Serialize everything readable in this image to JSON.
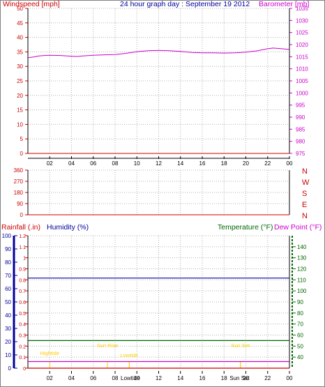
{
  "colors": {
    "wind": "#cc0000",
    "pressure": "#cc00cc",
    "title": "#00009c",
    "direction": "#cc0000",
    "rain": "#cc0000",
    "humidity": "#00009c",
    "temperature": "#006600",
    "dewpoint": "#cc00cc",
    "tide": "#ffcc00",
    "grid": "#b0b0b0"
  },
  "header": {
    "wind_label": "Windspeed [mph]",
    "title": "24 hour graph day : September 19 2012",
    "pressure_label": "Barometer [mb]"
  },
  "lower_header": {
    "rain_label": "Rainfall (.in)",
    "humidity_label": "Humidity (%)",
    "temp_label": "Temperature (°F)",
    "dew_label": "Dew Point (°F)"
  },
  "chart_data": [
    {
      "type": "line",
      "name": "wind-and-pressure",
      "x_ticks": [
        "02",
        "04",
        "06",
        "08",
        "10",
        "12",
        "14",
        "16",
        "18",
        "20",
        "22",
        "00"
      ],
      "xlim": [
        0,
        24
      ],
      "y_left": {
        "label": "Windspeed [mph]",
        "lim": [
          0,
          50
        ],
        "ticks": [
          "0",
          "5",
          "10",
          "15",
          "20",
          "25",
          "30",
          "35",
          "40",
          "45",
          "50"
        ]
      },
      "y_right": {
        "label": "Barometer [mb]",
        "lim": [
          975,
          1035
        ],
        "ticks": [
          "975",
          "980",
          "985",
          "990",
          "995",
          "1000",
          "1005",
          "1010",
          "1015",
          "1020",
          "1025",
          "1030",
          "1035"
        ]
      },
      "grid": true,
      "series": [
        {
          "axis": "left",
          "x": [
            0,
            24
          ],
          "y": [
            0,
            0
          ]
        },
        {
          "axis": "right",
          "x": [
            0,
            0.5,
            1,
            1.5,
            2,
            3,
            4,
            4.5,
            5,
            6,
            7,
            8,
            9,
            10,
            11,
            12,
            13,
            14,
            15,
            16,
            17,
            18,
            19,
            20,
            21,
            22,
            22.5,
            23,
            24
          ],
          "y": [
            1014.6,
            1014.9,
            1015.3,
            1015.5,
            1015.6,
            1015.5,
            1015.2,
            1015.1,
            1015.3,
            1015.6,
            1015.8,
            1015.9,
            1016.4,
            1017.1,
            1017.5,
            1017.6,
            1017.5,
            1017.2,
            1016.8,
            1016.6,
            1016.6,
            1016.5,
            1016.6,
            1016.9,
            1017.4,
            1018.3,
            1018.6,
            1018.4,
            1018.0
          ]
        }
      ]
    },
    {
      "type": "line",
      "name": "wind-direction",
      "x_ticks": [
        "02",
        "04",
        "06",
        "08",
        "10",
        "12",
        "14",
        "16",
        "18",
        "20",
        "22",
        "00"
      ],
      "xlim": [
        0,
        24
      ],
      "y_left": {
        "lim": [
          0,
          360
        ],
        "ticks": [
          "0",
          "90",
          "180",
          "270",
          "360"
        ]
      },
      "y_right": {
        "ticks": [
          "N",
          "W",
          "S",
          "E",
          "N"
        ]
      },
      "grid": true,
      "series": [
        {
          "x": [
            0,
            24
          ],
          "y": [
            0,
            0
          ]
        }
      ]
    },
    {
      "type": "line",
      "name": "rain-humidity-temperature",
      "x_ticks": [
        "02",
        "04",
        "06",
        "08",
        "10",
        "12",
        "14",
        "16",
        "18",
        "20",
        "22",
        "00"
      ],
      "xlim": [
        0,
        24
      ],
      "y_humidity": {
        "label": "Humidity (%)",
        "lim": [
          0,
          100
        ],
        "ticks": [
          "0",
          "10",
          "20",
          "30",
          "40",
          "50",
          "60",
          "70",
          "80",
          "90",
          "100"
        ]
      },
      "y_rain": {
        "label": "Rainfall (.in)",
        "lim": [
          0,
          1.2
        ],
        "ticks": [
          "0",
          "0.1",
          "0.2",
          "0.3",
          "0.4",
          "0.5",
          "0.6",
          "0.7",
          "0.8",
          "0.9",
          "1",
          "1.1",
          "1.2"
        ]
      },
      "y_temp": {
        "label": "Temperature (°F)",
        "lim": [
          30,
          150
        ],
        "ticks": [
          "40",
          "50",
          "60",
          "70",
          "80",
          "90",
          "100",
          "110",
          "120",
          "130",
          "140"
        ]
      },
      "grid": true,
      "series": [
        {
          "axis": "humidity",
          "x": [
            0,
            24
          ],
          "y": [
            68,
            68
          ]
        },
        {
          "axis": "temp",
          "x": [
            0,
            24
          ],
          "y": [
            55,
            55
          ]
        },
        {
          "axis": "temp",
          "x": [
            0,
            24
          ],
          "y": [
            36,
            36
          ]
        },
        {
          "axis": "rain",
          "x": [
            0,
            24
          ],
          "y": [
            0,
            0
          ]
        }
      ],
      "annotations": [
        {
          "label": "Hightide",
          "x": 2.0
        },
        {
          "label": "Sun Rise",
          "x": 7.3
        },
        {
          "label": "Lowtide",
          "x": 9.3
        },
        {
          "label": "Lowtide",
          "x": 9.3
        },
        {
          "label": "Sun Set",
          "x": 19.5
        },
        {
          "label": "Sun Set",
          "x": 19.5
        }
      ],
      "inline_x_labels": [
        "Lowtide",
        "Sun Set"
      ]
    }
  ]
}
